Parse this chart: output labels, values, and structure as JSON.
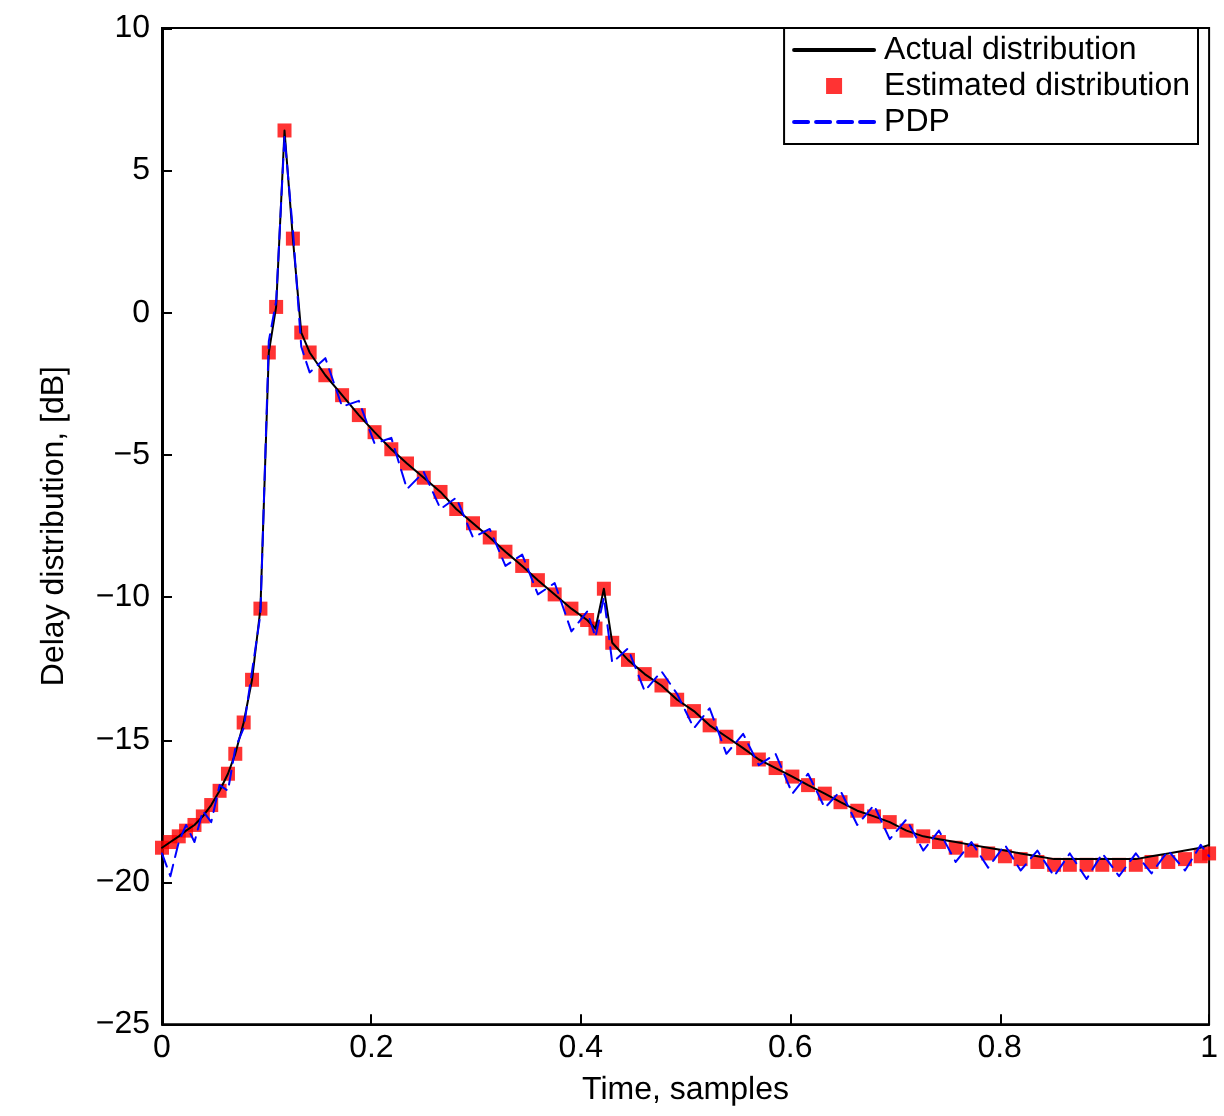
{
  "chart_data": {
    "type": "line",
    "xlabel": "Time, samples",
    "ylabel": "Delay distribution, [dB]",
    "x": [
      0,
      0.008,
      0.016,
      0.023,
      0.031,
      0.039,
      0.047,
      0.055,
      0.063,
      0.07,
      0.078,
      0.086,
      0.094,
      0.102,
      0.109,
      0.117,
      0.125,
      0.133,
      0.141,
      0.156,
      0.172,
      0.188,
      0.203,
      0.219,
      0.234,
      0.25,
      0.266,
      0.281,
      0.297,
      0.313,
      0.328,
      0.344,
      0.359,
      0.375,
      0.391,
      0.406,
      0.414,
      0.422,
      0.43,
      0.445,
      0.461,
      0.477,
      0.492,
      0.508,
      0.523,
      0.539,
      0.555,
      0.57,
      0.586,
      0.602,
      0.617,
      0.633,
      0.648,
      0.664,
      0.68,
      0.695,
      0.711,
      0.727,
      0.742,
      0.758,
      0.773,
      0.789,
      0.805,
      0.82,
      0.836,
      0.852,
      0.867,
      0.883,
      0.898,
      0.914,
      0.93,
      0.945,
      0.961,
      0.977,
      0.992,
      1.0
    ],
    "series": [
      {
        "name": "Actual distribution",
        "type": "line",
        "color": "#000000",
        "line_style": "solid",
        "marker": "none",
        "values": [
          -18.8,
          -18.6,
          -18.4,
          -18.2,
          -18.0,
          -17.7,
          -17.3,
          -16.8,
          -16.2,
          -15.5,
          -14.4,
          -12.9,
          -10.4,
          -1.4,
          0.2,
          6.4,
          2.6,
          -0.7,
          -1.4,
          -2.2,
          -2.9,
          -3.6,
          -4.2,
          -4.8,
          -5.3,
          -5.8,
          -6.3,
          -6.9,
          -7.4,
          -7.9,
          -8.4,
          -8.9,
          -9.4,
          -9.9,
          -10.4,
          -10.8,
          -11.1,
          -9.7,
          -11.6,
          -12.2,
          -12.7,
          -13.1,
          -13.6,
          -14.0,
          -14.5,
          -14.9,
          -15.3,
          -15.7,
          -16.0,
          -16.3,
          -16.6,
          -16.9,
          -17.2,
          -17.5,
          -17.7,
          -17.9,
          -18.2,
          -18.4,
          -18.5,
          -18.6,
          -18.7,
          -18.8,
          -18.9,
          -19.0,
          -19.1,
          -19.2,
          -19.2,
          -19.2,
          -19.2,
          -19.2,
          -19.2,
          -19.1,
          -19.0,
          -18.9,
          -18.8,
          -18.7
        ]
      },
      {
        "name": "Estimated distribution",
        "type": "scatter",
        "color": "#ff0000",
        "marker": "square",
        "values": [
          -18.8,
          -18.6,
          -18.4,
          -18.2,
          -18.0,
          -17.7,
          -17.3,
          -16.8,
          -16.2,
          -15.5,
          -14.4,
          -12.9,
          -10.4,
          -1.4,
          0.2,
          6.4,
          2.6,
          -0.7,
          -1.4,
          -2.2,
          -2.9,
          -3.6,
          -4.2,
          -4.8,
          -5.3,
          -5.8,
          -6.3,
          -6.9,
          -7.4,
          -7.9,
          -8.4,
          -8.9,
          -9.4,
          -9.9,
          -10.4,
          -10.8,
          -11.1,
          -9.7,
          -11.6,
          -12.2,
          -12.7,
          -13.1,
          -13.6,
          -14.0,
          -14.5,
          -14.9,
          -15.3,
          -15.7,
          -16.0,
          -16.3,
          -16.6,
          -16.9,
          -17.2,
          -17.5,
          -17.7,
          -17.9,
          -18.2,
          -18.4,
          -18.6,
          -18.8,
          -18.9,
          -19.0,
          -19.1,
          -19.2,
          -19.3,
          -19.4,
          -19.4,
          -19.4,
          -19.4,
          -19.4,
          -19.4,
          -19.3,
          -19.3,
          -19.2,
          -19.1,
          -19.0
        ]
      },
      {
        "name": "PDP",
        "type": "line",
        "color": "#0000ff",
        "line_style": "dashed",
        "marker": "none",
        "values": [
          -19.0,
          -19.8,
          -18.6,
          -18.0,
          -18.6,
          -17.5,
          -17.9,
          -16.6,
          -16.8,
          -15.3,
          -14.6,
          -12.6,
          -10.6,
          -1.0,
          0.4,
          6.2,
          2.9,
          -1.2,
          -2.1,
          -1.6,
          -3.3,
          -3.1,
          -4.6,
          -4.4,
          -6.2,
          -5.6,
          -6.9,
          -6.5,
          -7.9,
          -7.6,
          -8.9,
          -8.5,
          -9.9,
          -9.5,
          -11.2,
          -10.5,
          -11.4,
          -10.0,
          -12.3,
          -11.8,
          -13.3,
          -12.6,
          -13.4,
          -14.6,
          -13.9,
          -15.5,
          -14.8,
          -15.9,
          -15.5,
          -16.9,
          -16.2,
          -17.4,
          -16.8,
          -18.0,
          -17.3,
          -18.5,
          -17.8,
          -18.9,
          -18.2,
          -19.3,
          -18.6,
          -19.5,
          -18.7,
          -19.6,
          -18.9,
          -19.8,
          -19.0,
          -19.9,
          -19.0,
          -19.8,
          -19.0,
          -19.7,
          -18.9,
          -19.6,
          -18.7,
          -19.1
        ]
      }
    ],
    "xlim": [
      0,
      1
    ],
    "xticks": [
      0,
      0.2,
      0.4,
      0.6,
      0.8,
      1
    ],
    "ylim": [
      -25,
      10
    ],
    "yticks": [
      -25,
      -20,
      -15,
      -10,
      -5,
      0,
      5,
      10
    ],
    "legend": "top right",
    "grid": false
  }
}
